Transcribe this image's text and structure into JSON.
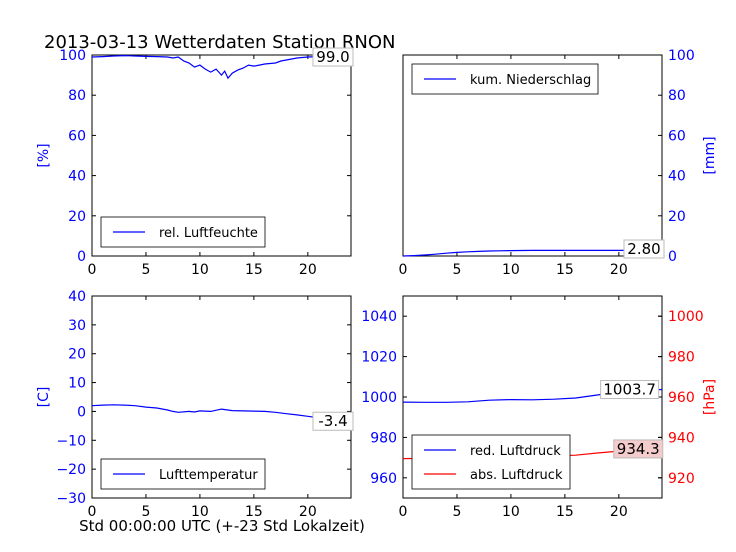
{
  "figure": {
    "title": "2013-03-13 Wetterdaten Station RNON",
    "xlabel": "Std 00:00:00 UTC (+-23 Std Lokalzeit)"
  },
  "colors": {
    "blue": "#0000ff",
    "red": "#ff0000",
    "black": "#000000",
    "pink_box": "#f4cccc"
  },
  "chart_data": [
    {
      "id": "humidity",
      "type": "line",
      "xlim": [
        0,
        24
      ],
      "ylim": [
        0,
        100
      ],
      "xticks": [
        "0",
        "5",
        "10",
        "15",
        "20"
      ],
      "yticks_left": [
        "0",
        "20",
        "40",
        "60",
        "80",
        "100"
      ],
      "ylabel_left": "[%]",
      "legend": {
        "placement": "lower-left",
        "entries": [
          {
            "label": "rel. Luftfeuchte",
            "color": "#0000ff"
          }
        ]
      },
      "annotation": {
        "text": "99.0",
        "x": 22.5,
        "y": 99.0,
        "box": "white"
      },
      "series": [
        {
          "name": "rel. Luftfeuchte",
          "color": "#0000ff",
          "points": [
            [
              0,
              99
            ],
            [
              1,
              99.2
            ],
            [
              2,
              99.5
            ],
            [
              3,
              99.7
            ],
            [
              4,
              99.5
            ],
            [
              5,
              99.3
            ],
            [
              6,
              99.2
            ],
            [
              7,
              99.0
            ],
            [
              7.5,
              98.5
            ],
            [
              8,
              99
            ],
            [
              8.5,
              97
            ],
            [
              9,
              96
            ],
            [
              9.5,
              94
            ],
            [
              10,
              95
            ],
            [
              10.5,
              93
            ],
            [
              11,
              91.5
            ],
            [
              11.5,
              93
            ],
            [
              12,
              90
            ],
            [
              12.3,
              92
            ],
            [
              12.6,
              88.5
            ],
            [
              13,
              91
            ],
            [
              13.5,
              92.5
            ],
            [
              14,
              93.5
            ],
            [
              14.5,
              95
            ],
            [
              15,
              94.5
            ],
            [
              15.5,
              95
            ],
            [
              16,
              95.5
            ],
            [
              17,
              96
            ],
            [
              17.5,
              97
            ],
            [
              18,
              97.5
            ],
            [
              19,
              98.5
            ],
            [
              20,
              99
            ],
            [
              21,
              99.2
            ],
            [
              22,
              99.1
            ],
            [
              24,
              99.0
            ]
          ]
        }
      ]
    },
    {
      "id": "precipitation",
      "type": "line",
      "xlim": [
        0,
        24
      ],
      "ylim": [
        0,
        100
      ],
      "xticks": [
        "0",
        "5",
        "10",
        "15",
        "20"
      ],
      "yticks_right": [
        "0",
        "20",
        "40",
        "60",
        "80",
        "100"
      ],
      "ylabel_right": "[mm]",
      "legend": {
        "placement": "upper-left",
        "entries": [
          {
            "label": "kum. Niederschlag",
            "color": "#0000ff"
          }
        ]
      },
      "annotation": {
        "text": "2.80",
        "x": 22.5,
        "y": 2.8,
        "box": "white"
      },
      "series": [
        {
          "name": "kum. Niederschlag",
          "color": "#0000ff",
          "points": [
            [
              0,
              0
            ],
            [
              1,
              0.2
            ],
            [
              2,
              0.5
            ],
            [
              3,
              0.9
            ],
            [
              4,
              1.4
            ],
            [
              5,
              1.8
            ],
            [
              6,
              2.1
            ],
            [
              7,
              2.3
            ],
            [
              8,
              2.5
            ],
            [
              9,
              2.6
            ],
            [
              10,
              2.7
            ],
            [
              12,
              2.8
            ],
            [
              16,
              2.8
            ],
            [
              20,
              2.8
            ],
            [
              24,
              2.8
            ]
          ]
        }
      ]
    },
    {
      "id": "temperature",
      "type": "line",
      "xlim": [
        0,
        24
      ],
      "ylim": [
        -30,
        40
      ],
      "xticks": [
        "0",
        "5",
        "10",
        "15",
        "20"
      ],
      "yticks_left": [
        "−30",
        "−20",
        "−10",
        "0",
        "10",
        "20",
        "30",
        "40"
      ],
      "ylabel_left": "[C]",
      "legend": {
        "placement": "lower-left",
        "entries": [
          {
            "label": "Lufttemperatur",
            "color": "#0000ff"
          }
        ]
      },
      "annotation": {
        "text": "-3.4",
        "x": 22.5,
        "y": -3.4,
        "box": "white"
      },
      "series": [
        {
          "name": "Lufttemperatur",
          "color": "#0000ff",
          "points": [
            [
              0,
              2.0
            ],
            [
              1,
              2.2
            ],
            [
              2,
              2.3
            ],
            [
              3,
              2.2
            ],
            [
              4,
              2.0
            ],
            [
              5,
              1.5
            ],
            [
              6,
              1.2
            ],
            [
              7,
              0.5
            ],
            [
              7.5,
              0
            ],
            [
              8,
              -0.3
            ],
            [
              9,
              0
            ],
            [
              9.5,
              -0.2
            ],
            [
              10,
              0.2
            ],
            [
              11,
              0
            ],
            [
              12,
              0.8
            ],
            [
              13,
              0.3
            ],
            [
              14,
              0.2
            ],
            [
              15,
              0.1
            ],
            [
              16,
              0
            ],
            [
              17,
              -0.3
            ],
            [
              18,
              -0.8
            ],
            [
              19,
              -1.2
            ],
            [
              20,
              -1.7
            ],
            [
              21,
              -2.2
            ],
            [
              22,
              -2.7
            ],
            [
              23,
              -3.1
            ],
            [
              24,
              -3.4
            ]
          ]
        }
      ]
    },
    {
      "id": "pressure",
      "type": "line",
      "xlim": [
        0,
        24
      ],
      "ylim_left": [
        950,
        1050
      ],
      "ylim_right": [
        910,
        1010
      ],
      "xticks": [
        "0",
        "5",
        "10",
        "15",
        "20"
      ],
      "yticks_left": [
        "960",
        "980",
        "1000",
        "1020",
        "1040"
      ],
      "yticks_right": [
        "920",
        "940",
        "960",
        "980",
        "1000"
      ],
      "ylabel_right": "[hPa]",
      "legend": {
        "placement": "lower-left",
        "entries": [
          {
            "label": "red. Luftdruck",
            "color": "#0000ff"
          },
          {
            "label": "abs. Luftdruck",
            "color": "#ff0000"
          }
        ]
      },
      "annotations": [
        {
          "text": "1003.7",
          "x": 21,
          "y": 1003.7,
          "axis": "left",
          "box": "white"
        },
        {
          "text": "934.3",
          "x": 21.8,
          "y": 934.3,
          "axis": "right",
          "box": "pink"
        }
      ],
      "series": [
        {
          "name": "red. Luftdruck",
          "color": "#0000ff",
          "axis": "left",
          "points": [
            [
              0,
              997.5
            ],
            [
              2,
              997.4
            ],
            [
              4,
              997.4
            ],
            [
              6,
              997.6
            ],
            [
              8,
              998.4
            ],
            [
              10,
              998.7
            ],
            [
              12,
              998.6
            ],
            [
              14,
              998.9
            ],
            [
              16,
              999.5
            ],
            [
              18,
              1001.0
            ],
            [
              20,
              1002.5
            ],
            [
              22,
              1003.2
            ],
            [
              24,
              1003.7
            ]
          ]
        },
        {
          "name": "abs. Luftdruck",
          "color": "#ff0000",
          "axis": "right",
          "points": [
            [
              0,
              929.5
            ],
            [
              2,
              929.6
            ],
            [
              4,
              929.6
            ],
            [
              6,
              929.8
            ],
            [
              8,
              930.2
            ],
            [
              10,
              930.5
            ],
            [
              12,
              930.6
            ],
            [
              14,
              930.8
            ],
            [
              16,
              931.2
            ],
            [
              18,
              932.3
            ],
            [
              20,
              933.2
            ],
            [
              22,
              933.9
            ],
            [
              24,
              934.3
            ]
          ]
        }
      ]
    }
  ]
}
